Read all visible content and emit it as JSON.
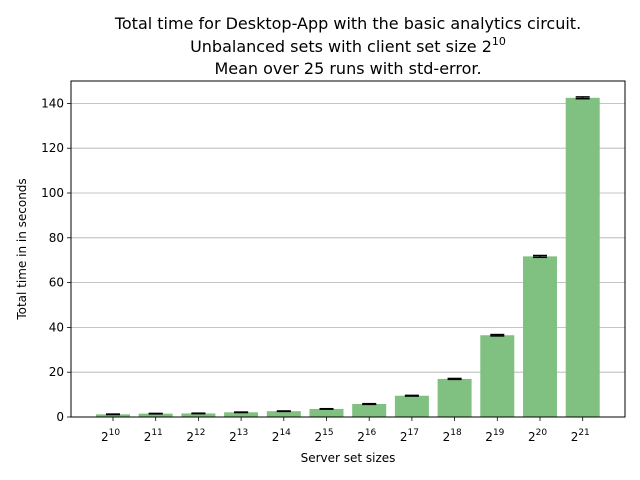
{
  "chart_data": {
    "type": "bar",
    "title_lines": [
      "Total time for Desktop-App with the basic analytics circuit.",
      "Unbalanced sets with client set size 2^10",
      "Mean over 25 runs with std-error."
    ],
    "xlabel": "Server set sizes",
    "ylabel": "Total time in in seconds",
    "categories": [
      "2^10",
      "2^11",
      "2^12",
      "2^13",
      "2^14",
      "2^15",
      "2^16",
      "2^17",
      "2^18",
      "2^19",
      "2^20",
      "2^21"
    ],
    "values": [
      1.2,
      1.5,
      1.6,
      2.1,
      2.6,
      3.6,
      5.8,
      9.5,
      17.0,
      36.5,
      71.7,
      142.5
    ],
    "errors": [
      0.1,
      0.1,
      0.1,
      0.1,
      0.1,
      0.1,
      0.15,
      0.15,
      0.2,
      0.3,
      0.4,
      0.4
    ],
    "ylim": [
      0,
      150
    ],
    "yticks": [
      0,
      20,
      40,
      60,
      80,
      100,
      120,
      140
    ],
    "grid": "y-major",
    "bar_color": "#80c080",
    "error_color": "#000000"
  }
}
